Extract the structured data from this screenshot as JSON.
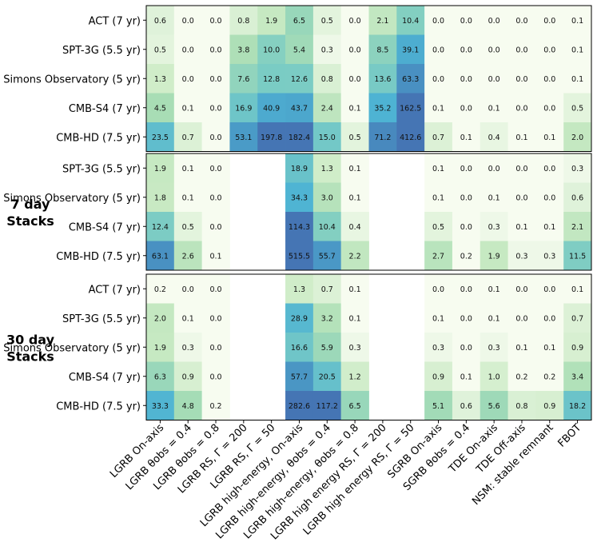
{
  "chart_data": {
    "type": "heatmap",
    "columns": [
      "LGRB On-axis",
      "LGRB θobs = 0.4",
      "LGRB θobs = 0.8",
      "LGRB RS, Γ = 200",
      "LGRB RS, Γ = 50",
      "LGRB high-energy, On-axis",
      "LGRB high-energy, θobs = 0.4",
      "LGRB high-energy, θobs = 0.8",
      "LGRB high energy RS, Γ = 200",
      "LGRB high energy RS, Γ = 50",
      "SGRB On-axis",
      "SGRB θobs = 0.4",
      "TDE On-axis",
      "TDE Off-axis",
      "NSM: stable remnant",
      "FBOT"
    ],
    "panels": [
      {
        "label": "",
        "rows": [
          "ACT (7 yr)",
          "SPT-3G (5.5 yr)",
          "Simons Observatory (5 yr)",
          "CMB-S4 (7 yr)",
          "CMB-HD (7.5 yr)"
        ],
        "values": [
          [
            "0.6",
            "0.0",
            "0.0",
            "0.8",
            "1.9",
            "6.5",
            "0.5",
            "0.0",
            "2.1",
            "10.4",
            "0.0",
            "0.0",
            "0.0",
            "0.0",
            "0.0",
            "0.1"
          ],
          [
            "0.5",
            "0.0",
            "0.0",
            "3.8",
            "10.0",
            "5.4",
            "0.3",
            "0.0",
            "8.5",
            "39.1",
            "0.0",
            "0.0",
            "0.0",
            "0.0",
            "0.0",
            "0.1"
          ],
          [
            "1.3",
            "0.0",
            "0.0",
            "7.6",
            "12.8",
            "12.6",
            "0.8",
            "0.0",
            "13.6",
            "63.3",
            "0.0",
            "0.0",
            "0.0",
            "0.0",
            "0.0",
            "0.1"
          ],
          [
            "4.5",
            "0.1",
            "0.0",
            "16.9",
            "40.9",
            "43.7",
            "2.4",
            "0.1",
            "35.2",
            "162.5",
            "0.1",
            "0.0",
            "0.1",
            "0.0",
            "0.0",
            "0.5"
          ],
          [
            "23.5",
            "0.7",
            "0.0",
            "53.1",
            "197.8",
            "182.4",
            "15.0",
            "0.5",
            "71.2",
            "412.6",
            "0.7",
            "0.1",
            "0.4",
            "0.1",
            "0.1",
            "2.0"
          ]
        ]
      },
      {
        "label": "7 day Stacks",
        "rows": [
          "SPT-3G (5.5 yr)",
          "Simons Observatory (5 yr)",
          "CMB-S4 (7 yr)",
          "CMB-HD (7.5 yr)"
        ],
        "values": [
          [
            "1.9",
            "0.1",
            "0.0",
            null,
            null,
            "18.9",
            "1.3",
            "0.1",
            null,
            null,
            "0.1",
            "0.0",
            "0.0",
            "0.0",
            "0.0",
            "0.3"
          ],
          [
            "1.8",
            "0.1",
            "0.0",
            null,
            null,
            "34.3",
            "3.0",
            "0.1",
            null,
            null,
            "0.1",
            "0.0",
            "0.1",
            "0.0",
            "0.0",
            "0.6"
          ],
          [
            "12.4",
            "0.5",
            "0.0",
            null,
            null,
            "114.3",
            "10.4",
            "0.4",
            null,
            null,
            "0.5",
            "0.0",
            "0.3",
            "0.1",
            "0.1",
            "2.1"
          ],
          [
            "63.1",
            "2.6",
            "0.1",
            null,
            null,
            "515.5",
            "55.7",
            "2.2",
            null,
            null,
            "2.7",
            "0.2",
            "1.9",
            "0.3",
            "0.3",
            "11.5"
          ]
        ]
      },
      {
        "label": "30 day Stacks",
        "rows": [
          "ACT (7 yr)",
          "SPT-3G (5.5 yr)",
          "Simons Observatory (5 yr)",
          "CMB-S4 (7 yr)",
          "CMB-HD (7.5 yr)"
        ],
        "values": [
          [
            "0.2",
            "0.0",
            "0.0",
            null,
            null,
            "1.3",
            "0.7",
            "0.1",
            null,
            null,
            "0.0",
            "0.0",
            "0.1",
            "0.0",
            "0.0",
            "0.1"
          ],
          [
            "2.0",
            "0.1",
            "0.0",
            null,
            null,
            "28.9",
            "3.2",
            "0.1",
            null,
            null,
            "0.1",
            "0.0",
            "0.1",
            "0.0",
            "0.0",
            "0.7"
          ],
          [
            "1.9",
            "0.3",
            "0.0",
            null,
            null,
            "16.6",
            "5.9",
            "0.3",
            null,
            null,
            "0.3",
            "0.0",
            "0.3",
            "0.1",
            "0.1",
            "0.9"
          ],
          [
            "6.3",
            "0.9",
            "0.0",
            null,
            null,
            "57.7",
            "20.5",
            "1.2",
            null,
            null,
            "0.9",
            "0.1",
            "1.0",
            "0.2",
            "0.2",
            "3.4"
          ],
          [
            "33.3",
            "4.8",
            "0.2",
            null,
            null,
            "282.6",
            "117.2",
            "6.5",
            null,
            null,
            "5.1",
            "0.6",
            "5.6",
            "0.8",
            "0.9",
            "18.2"
          ]
        ]
      }
    ],
    "colormap": [
      "#f7fcf0",
      "#e0f3db",
      "#ccebc5",
      "#a8ddb5",
      "#7bccc4",
      "#4eb3d3",
      "#4575b4"
    ],
    "color_scale": "log"
  }
}
